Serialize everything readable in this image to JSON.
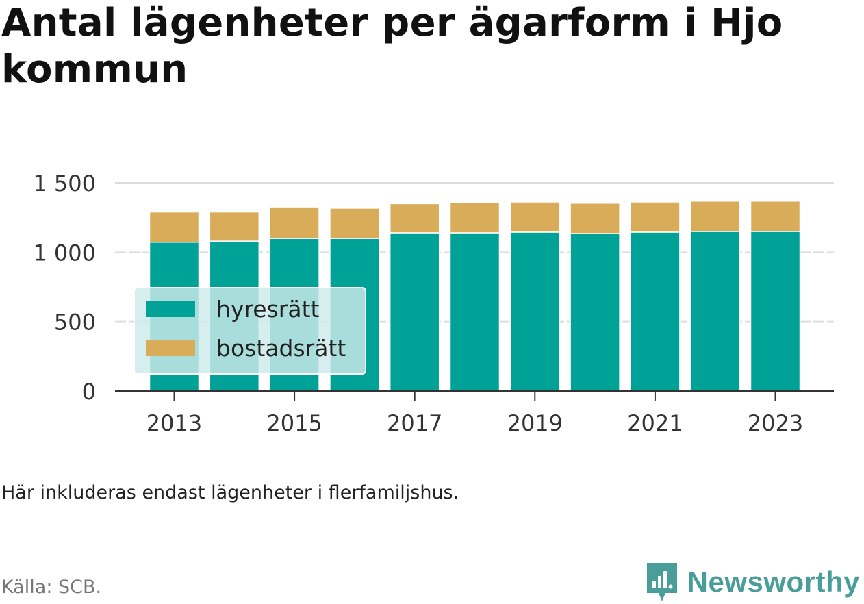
{
  "title": "Antal lägenheter per ägarform i Hjo kommun",
  "note": "Här inkluderas endast lägenheter i flerfamiljshus.",
  "source": "Källa: SCB.",
  "brand": {
    "name": "Newsworthy",
    "icon": "newsworthy-logo-icon",
    "color": "#4a9e9a"
  },
  "colors": {
    "hyresratt": "#00a197",
    "bostadsratt": "#d9ac5a",
    "legend_bg": "#cdeaea"
  },
  "chart_data": {
    "type": "bar",
    "stacked": true,
    "categories": [
      "2013",
      "2014",
      "2015",
      "2016",
      "2017",
      "2018",
      "2019",
      "2020",
      "2021",
      "2022",
      "2023"
    ],
    "series": [
      {
        "name": "hyresrätt",
        "color": "#00a197",
        "values": [
          1072,
          1080,
          1100,
          1100,
          1140,
          1140,
          1145,
          1135,
          1145,
          1150,
          1150
        ]
      },
      {
        "name": "bostadsrätt",
        "color": "#d9ac5a",
        "values": [
          218,
          210,
          222,
          218,
          210,
          218,
          217,
          218,
          217,
          218,
          218
        ]
      }
    ],
    "x_tick_labels": [
      "2013",
      "2015",
      "2017",
      "2019",
      "2021",
      "2023"
    ],
    "y_ticks": [
      0,
      500,
      1000,
      1500
    ],
    "y_tick_labels": [
      "0",
      "500",
      "1 000",
      "1 500"
    ],
    "ylim": [
      0,
      1500
    ],
    "grid": "horizontal dashed",
    "legend_position": "bottom-left inside plot"
  }
}
